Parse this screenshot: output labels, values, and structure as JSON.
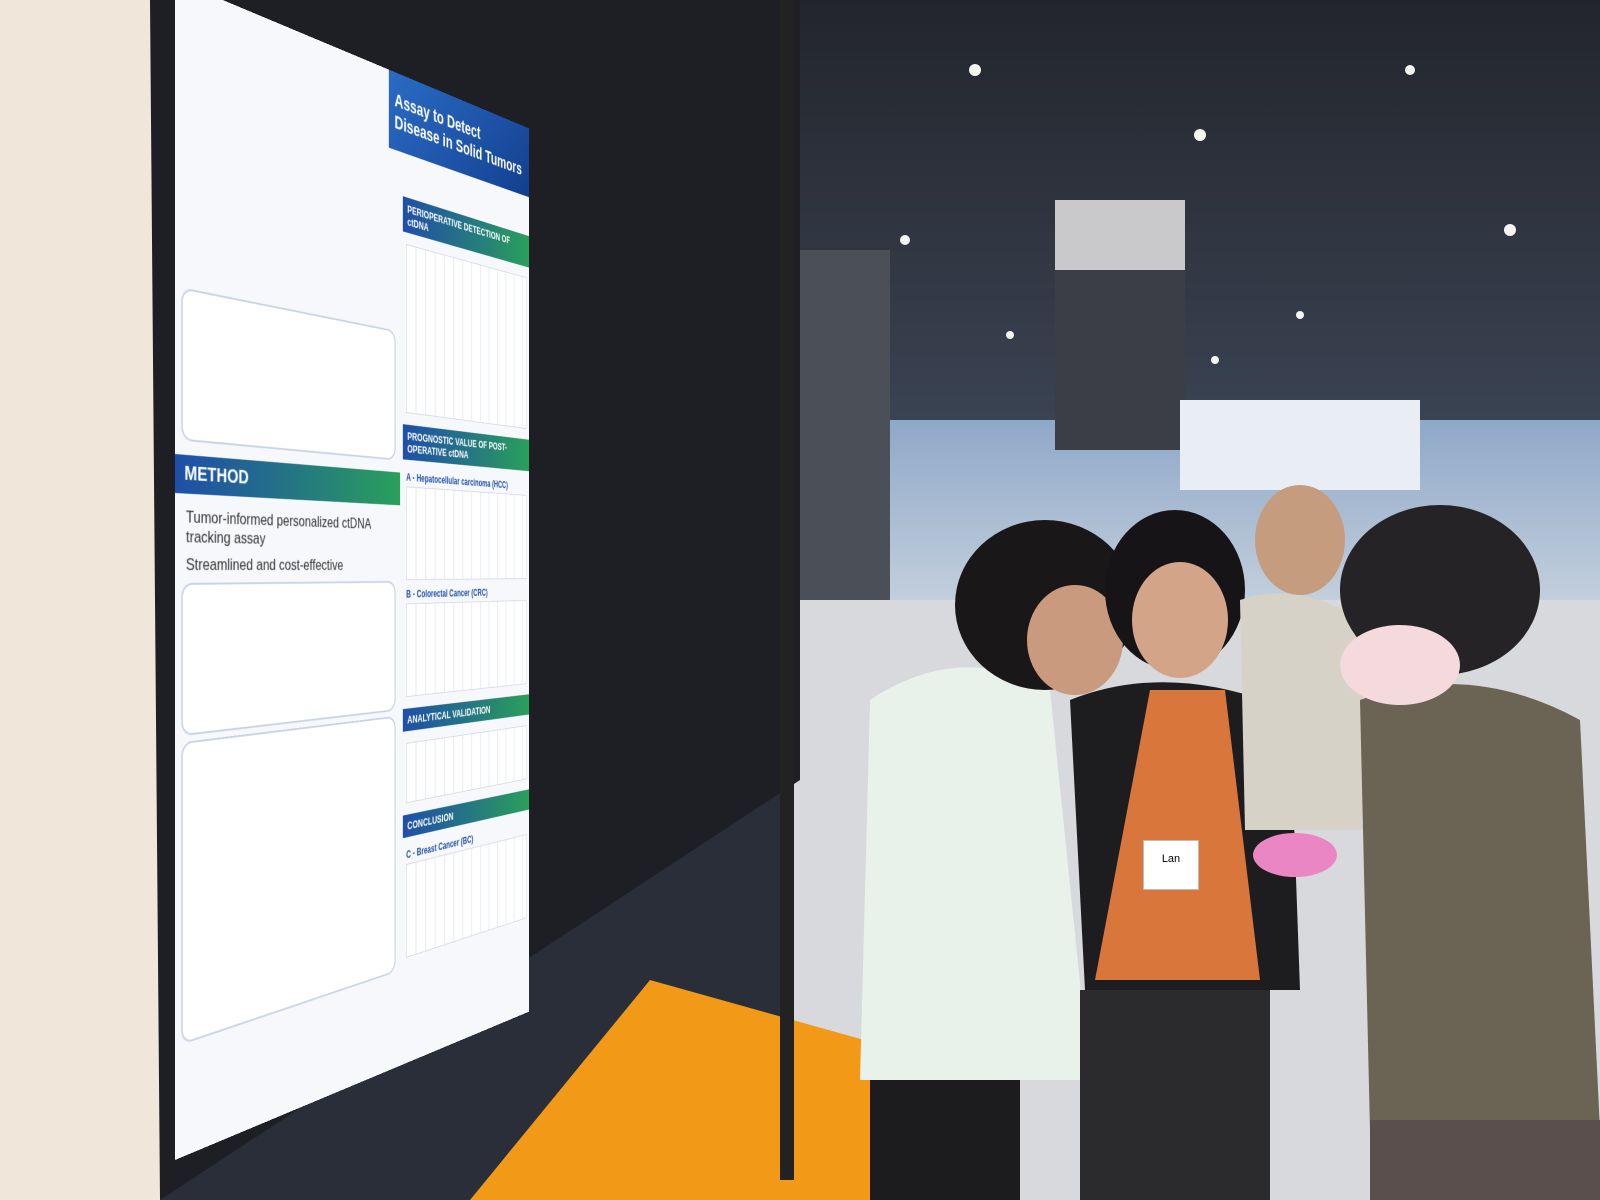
{
  "poster": {
    "title": "Assay to Detect",
    "subtitle": "Disease in Solid Tumors",
    "sections": [
      "PERIOPERATIVE DETECTION OF ctDNA",
      "METHOD",
      "PROGNOSTIC VALUE OF POST-OPERATIVE ctDNA",
      "ANALYTICAL VALIDATION",
      "CONCLUSION"
    ],
    "method_points": [
      "Tumor-informed personalized ctDNA tracking assay",
      "Streamlined and cost-effective"
    ],
    "panels": [
      "A - Hepatocellular carcinoma (HCC)",
      "B - Colorectal Cancer (CRC)",
      "C - Breast Cancer (BC)"
    ]
  },
  "badge": {
    "name": "Lan"
  }
}
